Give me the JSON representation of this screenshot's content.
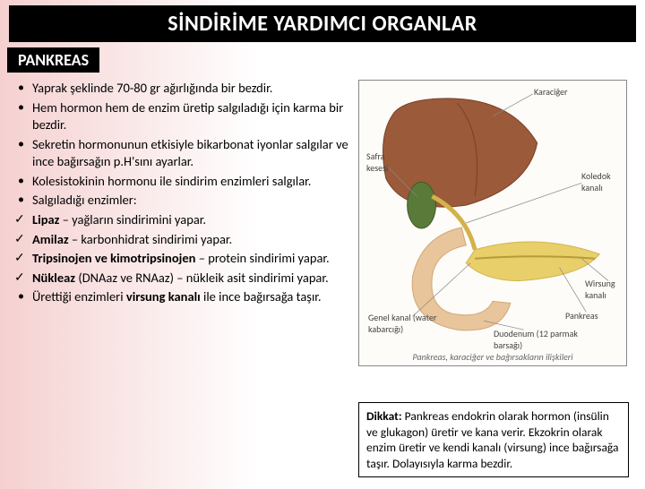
{
  "title": "SİNDİRİME YARDIMCI ORGANLAR",
  "section_label": "PANKREAS",
  "points": [
    {
      "type": "bullet",
      "html": "Yaprak şeklinde 70-80 gr ağırlığında bir bezdir."
    },
    {
      "type": "bullet",
      "html": "Hem hormon hem de enzim üretip salgıladığı için karma bir bezdir."
    },
    {
      "type": "bullet",
      "html": "Sekretin hormonunun etkisiyle bikarbonat iyonlar salgılar ve ince bağırsağın p.H'sını ayarlar."
    },
    {
      "type": "bullet",
      "html": "Kolesistokinin hormonu ile sindirim enzimleri salgılar."
    },
    {
      "type": "bullet",
      "html": "Salgıladığı enzimler:"
    },
    {
      "type": "check",
      "html": "<b>Lipaz</b> – yağların sindirimini yapar."
    },
    {
      "type": "check",
      "html": "<b>Amilaz</b> – karbonhidrat sindirimi yapar."
    },
    {
      "type": "check",
      "html": "<b>Tripsinojen ve kimotripsinojen</b> – protein sindirimi yapar."
    },
    {
      "type": "check",
      "html": "<b>Nükleaz</b> (DNAaz ve RNAaz) – nükleik asit sindirimi yapar."
    },
    {
      "type": "bullet",
      "html": "Ürettiği enzimleri <b>virsung kanalı</b> ile ince bağırsağa taşır."
    }
  ],
  "figure": {
    "labels": {
      "karaciger": "Karaciğer",
      "safra": "Safra kesesi",
      "koledok": "Koledok kanalı",
      "wirsung": "Wirsung kanalı",
      "genel": "Genel kanal (water kabarcığı)",
      "duodenum": "Duodenum (12 parmak barsağı)",
      "pankreas": "Pankreas"
    },
    "caption": "Pankreas, karaciğer ve bağırsakların ilişkileri",
    "colors": {
      "liver": "#9b5a3a",
      "liver_dark": "#7a4028",
      "gall": "#5a7a3a",
      "duct": "#d4b24a",
      "pancreas": "#e8cf6a",
      "pancreas_shade": "#d0b550",
      "duodenum": "#e8c59a",
      "duodenum_shade": "#d0a878",
      "bg": "#fdfcf8"
    }
  },
  "note": {
    "label": "Dikkat:",
    "text": "Pankreas endokrin olarak hormon (insülin ve glukagon) üretir ve kana verir. Ekzokrin olarak enzim üretir ve kendi kanalı (virsung) ince bağırsağa taşır. Dolayısıyla karma bezdir."
  }
}
